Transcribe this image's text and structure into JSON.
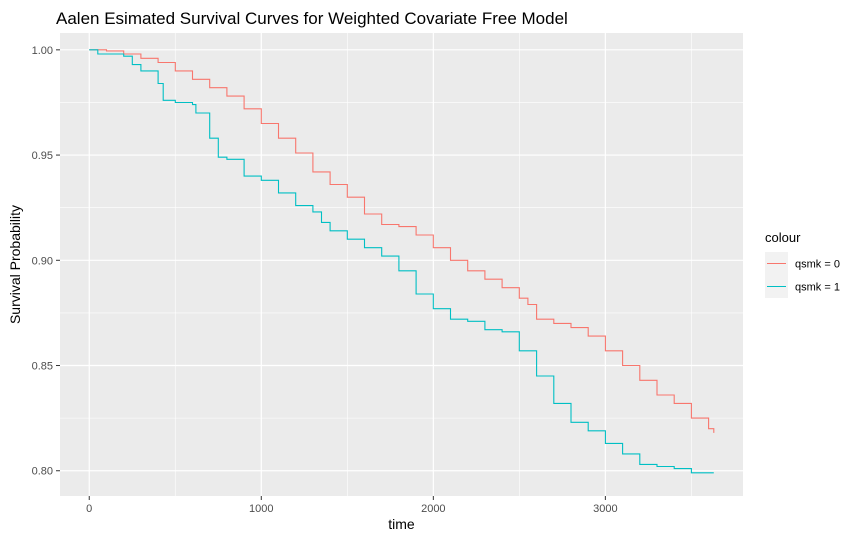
{
  "chart_data": {
    "type": "line",
    "title": "Aalen Esimated Survival Curves for Weighted Covariate Free Model",
    "xlabel": "time",
    "ylabel": "Survival Probability",
    "xlim": [
      -170,
      3800
    ],
    "ylim": [
      0.788,
      1.008
    ],
    "x_ticks": [
      0,
      1000,
      2000,
      3000
    ],
    "x_tick_labels": [
      "0",
      "1000",
      "2000",
      "3000"
    ],
    "y_ticks": [
      0.8,
      0.85,
      0.9,
      0.95,
      1.0
    ],
    "y_tick_labels": [
      "0.80",
      "0.85",
      "0.90",
      "0.95",
      "1.00"
    ],
    "grid": true,
    "legend": {
      "title": "colour",
      "position": "right"
    },
    "series": [
      {
        "name": "qsmk = 0",
        "color": "#F8766D",
        "points": [
          [
            0,
            1.0
          ],
          [
            100,
            0.9995
          ],
          [
            200,
            0.998
          ],
          [
            300,
            0.996
          ],
          [
            400,
            0.994
          ],
          [
            500,
            0.99
          ],
          [
            600,
            0.986
          ],
          [
            700,
            0.982
          ],
          [
            800,
            0.978
          ],
          [
            900,
            0.972
          ],
          [
            1000,
            0.965
          ],
          [
            1100,
            0.958
          ],
          [
            1200,
            0.951
          ],
          [
            1300,
            0.942
          ],
          [
            1400,
            0.936
          ],
          [
            1500,
            0.93
          ],
          [
            1600,
            0.922
          ],
          [
            1700,
            0.917
          ],
          [
            1800,
            0.916
          ],
          [
            1900,
            0.912
          ],
          [
            2000,
            0.906
          ],
          [
            2100,
            0.9
          ],
          [
            2200,
            0.895
          ],
          [
            2300,
            0.891
          ],
          [
            2400,
            0.887
          ],
          [
            2500,
            0.882
          ],
          [
            2550,
            0.879
          ],
          [
            2600,
            0.872
          ],
          [
            2700,
            0.87
          ],
          [
            2800,
            0.868
          ],
          [
            2900,
            0.864
          ],
          [
            3000,
            0.857
          ],
          [
            3100,
            0.85
          ],
          [
            3200,
            0.843
          ],
          [
            3300,
            0.836
          ],
          [
            3400,
            0.832
          ],
          [
            3500,
            0.825
          ],
          [
            3600,
            0.82
          ],
          [
            3630,
            0.818
          ]
        ]
      },
      {
        "name": "qsmk = 1",
        "color": "#00BFC4",
        "points": [
          [
            0,
            1.0
          ],
          [
            50,
            0.998
          ],
          [
            200,
            0.997
          ],
          [
            250,
            0.993
          ],
          [
            300,
            0.99
          ],
          [
            400,
            0.984
          ],
          [
            430,
            0.976
          ],
          [
            500,
            0.975
          ],
          [
            600,
            0.974
          ],
          [
            620,
            0.97
          ],
          [
            700,
            0.958
          ],
          [
            750,
            0.949
          ],
          [
            800,
            0.948
          ],
          [
            900,
            0.94
          ],
          [
            1000,
            0.938
          ],
          [
            1100,
            0.932
          ],
          [
            1200,
            0.926
          ],
          [
            1300,
            0.923
          ],
          [
            1350,
            0.918
          ],
          [
            1400,
            0.914
          ],
          [
            1500,
            0.91
          ],
          [
            1600,
            0.906
          ],
          [
            1700,
            0.902
          ],
          [
            1800,
            0.895
          ],
          [
            1900,
            0.884
          ],
          [
            2000,
            0.877
          ],
          [
            2100,
            0.872
          ],
          [
            2200,
            0.871
          ],
          [
            2300,
            0.867
          ],
          [
            2400,
            0.866
          ],
          [
            2500,
            0.857
          ],
          [
            2600,
            0.845
          ],
          [
            2700,
            0.832
          ],
          [
            2800,
            0.823
          ],
          [
            2900,
            0.819
          ],
          [
            3000,
            0.813
          ],
          [
            3100,
            0.808
          ],
          [
            3200,
            0.803
          ],
          [
            3300,
            0.802
          ],
          [
            3400,
            0.801
          ],
          [
            3500,
            0.799
          ],
          [
            3630,
            0.799
          ]
        ]
      }
    ]
  }
}
